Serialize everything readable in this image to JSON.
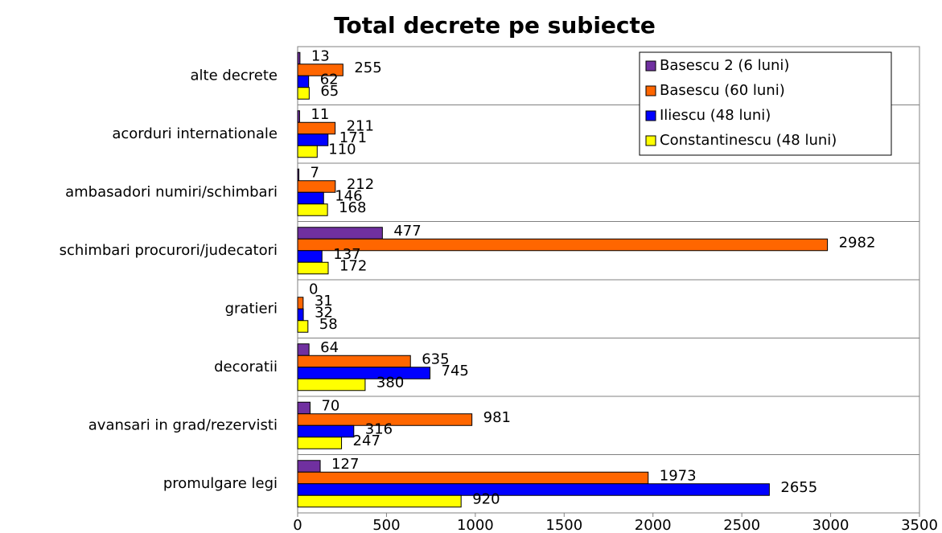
{
  "chart_data": {
    "type": "bar",
    "orientation": "horizontal",
    "title": "Total decrete pe subiecte",
    "categories": [
      "alte decrete",
      "acorduri internationale",
      "ambasadori numiri/schimbari",
      "schimbari procurori/judecatori",
      "gratieri",
      "decoratii",
      "avansari in grad/rezervisti",
      "promulgare legi"
    ],
    "series": [
      {
        "name": "Basescu 2 (6 luni)",
        "color": "#7030a0",
        "values": [
          13,
          11,
          7,
          477,
          0,
          64,
          70,
          127
        ]
      },
      {
        "name": "Basescu (60 luni)",
        "color": "#ff6600",
        "values": [
          255,
          211,
          212,
          2982,
          31,
          635,
          981,
          1973
        ]
      },
      {
        "name": "Iliescu (48 luni)",
        "color": "#0000ff",
        "values": [
          62,
          171,
          146,
          137,
          32,
          745,
          316,
          2655
        ]
      },
      {
        "name": "Constantinescu (48 luni)",
        "color": "#ffff00",
        "values": [
          65,
          110,
          168,
          172,
          58,
          380,
          247,
          920
        ]
      }
    ],
    "xlim": [
      0,
      3500
    ],
    "xticks": [
      0,
      500,
      1000,
      1500,
      2000,
      2500,
      3000,
      3500
    ],
    "legend": "top-right"
  }
}
